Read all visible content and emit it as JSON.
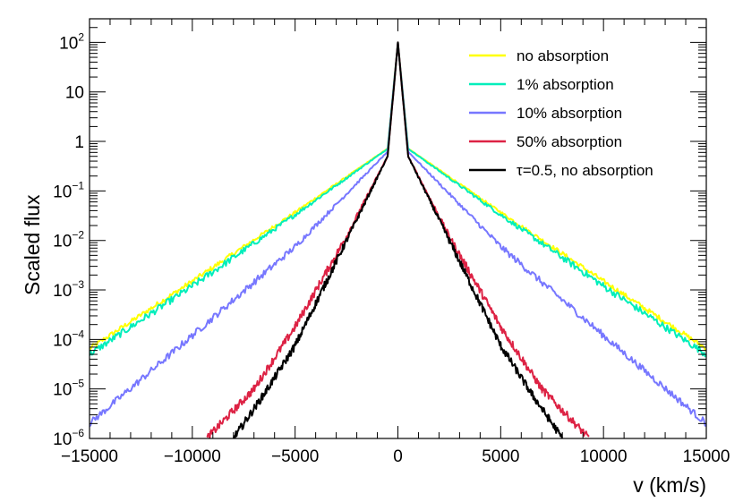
{
  "chart_data": {
    "type": "line",
    "title": "",
    "xlabel": "v (km/s)",
    "ylabel": "Scaled flux",
    "xlim": [
      -15000,
      15000
    ],
    "ylim": [
      1e-06,
      300
    ],
    "yscale": "log",
    "grid": false,
    "legend_position": "top-right",
    "x_ticks": [
      -15000,
      -10000,
      -5000,
      0,
      5000,
      10000,
      15000
    ],
    "x_tick_labels": [
      "−15000",
      "−10000",
      "−5000",
      "0",
      "5000",
      "10000",
      "15000"
    ],
    "y_ticks": [
      {
        "value": 100,
        "base": "10",
        "exp": "2"
      },
      {
        "value": 10,
        "base": "10",
        "exp": ""
      },
      {
        "value": 1,
        "base": "1",
        "exp": ""
      },
      {
        "value": 0.1,
        "base": "10",
        "exp": "−1"
      },
      {
        "value": 0.01,
        "base": "10",
        "exp": "−2"
      },
      {
        "value": 0.001,
        "base": "10",
        "exp": "−3"
      },
      {
        "value": 0.0001,
        "base": "10",
        "exp": "−4"
      },
      {
        "value": 1e-05,
        "base": "10",
        "exp": "−5"
      },
      {
        "value": 1e-06,
        "base": "10",
        "exp": "−6"
      }
    ],
    "series": [
      {
        "name": "no absorption",
        "color": "#ffff00",
        "noise": 0.05,
        "x": [
          -15000,
          -10000,
          -5000,
          -500,
          0,
          500,
          5000,
          10000,
          15000
        ],
        "y": [
          6.5e-05,
          0.0015,
          0.037,
          0.72,
          100,
          0.72,
          0.037,
          0.0015,
          6.5e-05
        ]
      },
      {
        "name": "1% absorption",
        "color": "#00eebb",
        "noise": 0.07,
        "x": [
          -15000,
          -10000,
          -5000,
          -500,
          0,
          500,
          5000,
          10000,
          15000
        ],
        "y": [
          5e-05,
          0.0012,
          0.033,
          0.71,
          100,
          0.71,
          0.033,
          0.0012,
          5e-05
        ]
      },
      {
        "name": "10% absorption",
        "color": "#7777ff",
        "noise": 0.07,
        "x": [
          -15000,
          -10000,
          -5000,
          -500,
          0,
          500,
          5000,
          10000,
          15000
        ],
        "y": [
          2e-06,
          0.00012,
          0.0075,
          0.62,
          100,
          0.62,
          0.0075,
          0.00012,
          2e-06
        ]
      },
      {
        "name": "50% absorption",
        "color": "#dd2244",
        "noise": 0.08,
        "x": [
          -9300,
          -7000,
          -5000,
          -2500,
          -500,
          0,
          500,
          2500,
          5000,
          7000,
          9300
        ],
        "y": [
          1e-06,
          1e-05,
          0.00018,
          0.012,
          0.5,
          100,
          0.5,
          0.012,
          0.00018,
          1e-05,
          1e-06
        ]
      },
      {
        "name": "τ=0.5, no absorption",
        "color": "#000000",
        "noise": 0.08,
        "x": [
          -8000,
          -6500,
          -5000,
          -2500,
          -500,
          0,
          500,
          2500,
          5000,
          6500,
          8000
        ],
        "y": [
          1e-06,
          8e-06,
          7.5e-05,
          0.01,
          0.5,
          100,
          0.5,
          0.01,
          7.5e-05,
          8e-06,
          1e-06
        ]
      }
    ]
  }
}
